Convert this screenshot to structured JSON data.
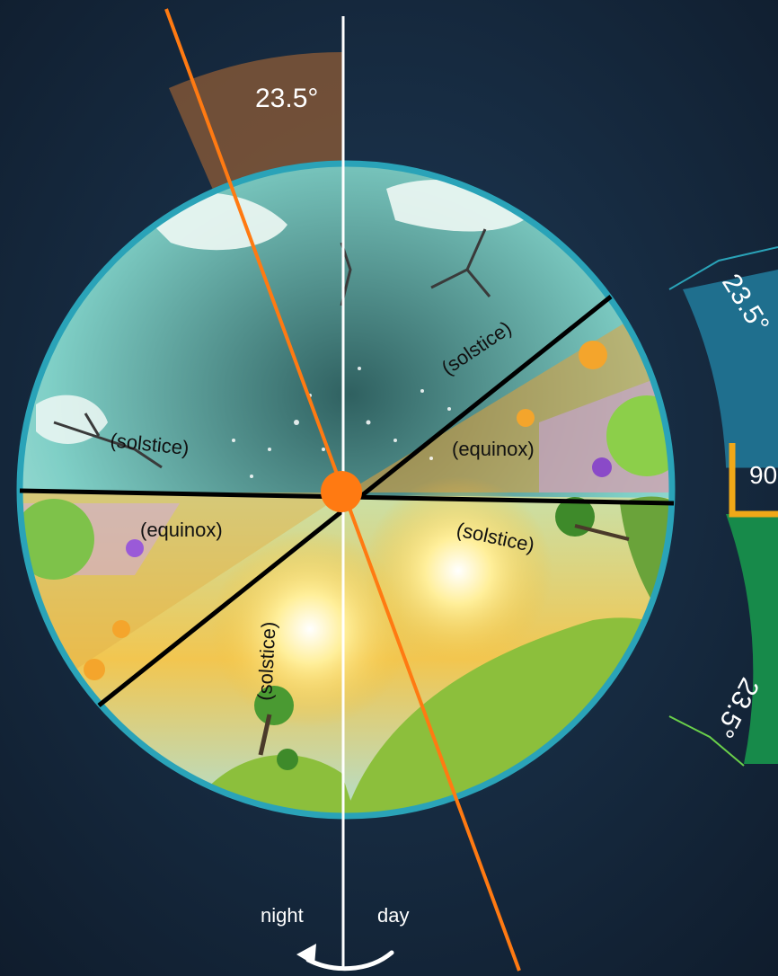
{
  "tilt_angle_top": "23.5°",
  "arc_upper_label": "23.5°",
  "arc_middle_label": "90",
  "arc_lower_label": "23.5°",
  "sectors": {
    "upper_left": "(solstice)",
    "upper_right_line": "(solstice)",
    "right_middle": "(equinox)",
    "left_middle": "(equinox)",
    "lower_right": "(solstice)",
    "lower_left_line": "(solstice)"
  },
  "rotation": {
    "left_label": "night",
    "right_label": "day"
  },
  "colors": {
    "background": "#14263a",
    "rim": "#2aa3b8",
    "axis_tilted": "#ff7a12",
    "axis_vertical": "#ffffff",
    "arc_top": "#1f6f8e",
    "arc_bottom": "#178a4a",
    "right_angle": "#f0a818"
  }
}
